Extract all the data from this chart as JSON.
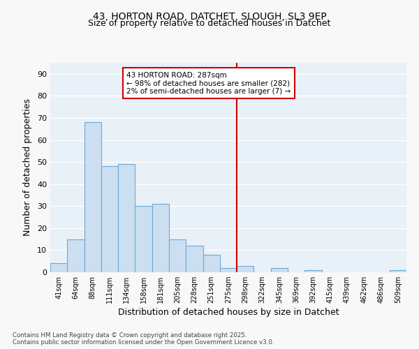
{
  "title_line1": "43, HORTON ROAD, DATCHET, SLOUGH, SL3 9EP",
  "title_line2": "Size of property relative to detached houses in Datchet",
  "xlabel": "Distribution of detached houses by size in Datchet",
  "ylabel": "Number of detached properties",
  "bin_labels": [
    "41sqm",
    "64sqm",
    "88sqm",
    "111sqm",
    "134sqm",
    "158sqm",
    "181sqm",
    "205sqm",
    "228sqm",
    "251sqm",
    "275sqm",
    "298sqm",
    "322sqm",
    "345sqm",
    "369sqm",
    "392sqm",
    "415sqm",
    "439sqm",
    "462sqm",
    "486sqm",
    "509sqm"
  ],
  "bar_values": [
    4,
    15,
    68,
    48,
    49,
    30,
    31,
    15,
    12,
    8,
    2,
    3,
    0,
    2,
    0,
    1,
    0,
    0,
    0,
    0,
    1
  ],
  "bar_color": "#ccdff0",
  "bar_edge_color": "#6aaad4",
  "vline_color": "#cc0000",
  "annotation_line1": "43 HORTON ROAD: 287sqm",
  "annotation_line2": "← 98% of detached houses are smaller (282)",
  "annotation_line3": "2% of semi-detached houses are larger (7) →",
  "annotation_box_edge": "#cc0000",
  "ylim": [
    0,
    95
  ],
  "yticks": [
    0,
    10,
    20,
    30,
    40,
    50,
    60,
    70,
    80,
    90
  ],
  "background_color": "#dce8f5",
  "plot_bg_color": "#e8f0f8",
  "grid_color": "#ffffff",
  "footer_line1": "Contains HM Land Registry data © Crown copyright and database right 2025.",
  "footer_line2": "Contains public sector information licensed under the Open Government Licence v3.0."
}
